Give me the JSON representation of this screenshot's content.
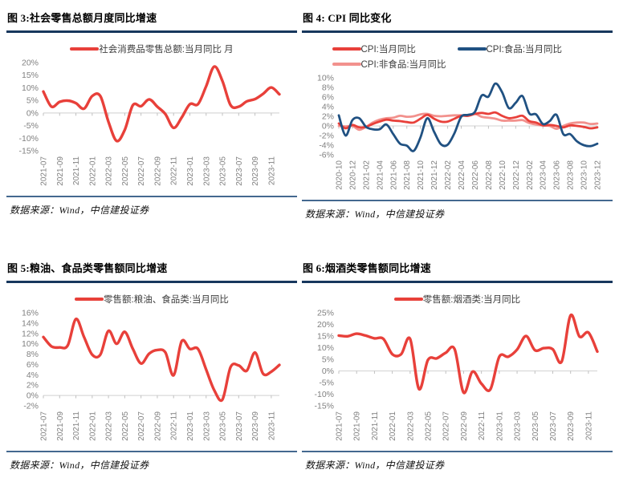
{
  "colors": {
    "red": "#E8403A",
    "navy": "#205182",
    "pink": "#F2918D",
    "title_underline": "#17375D",
    "footer_separator": "#44688F",
    "zero_baseline": "#D9D9D9",
    "axis_tick": "#C0C0C0",
    "tick_text": "#808080",
    "legend_text": "#3F3F3F"
  },
  "panels": [
    {
      "title": "图 3:社会零售总额月度同比增速",
      "source": "数据来源：Wind，中信建投证券"
    },
    {
      "title": "图 4: CPI 同比变化",
      "source": "数据来源：Wind，中信建投证券"
    },
    {
      "title": "图 5:粮油、食品类零售额同比增速",
      "source": "数据来源：Wind，中信建投证券"
    },
    {
      "title": "图 6:烟酒类零售额同比增速",
      "source": "数据来源：Wind，中信建投证券"
    }
  ],
  "chart_data": [
    {
      "type": "line",
      "title": "图 3:社会零售总额月度同比增速",
      "x_start": "2021-07",
      "x_end": "2023-12",
      "n_points": 30,
      "xtick_every": 2,
      "xtick_labels": [
        "2021-07",
        "2021-09",
        "2021-11",
        "2022-01",
        "2022-03",
        "2022-05",
        "2022-07",
        "2022-09",
        "2022-11",
        "2023-01",
        "2023-03",
        "2023-05",
        "2023-07",
        "2023-09",
        "2023-11"
      ],
      "ylim": [
        -15,
        20
      ],
      "yticks": [
        20,
        15,
        10,
        5,
        0,
        -5,
        -10,
        -15
      ],
      "ytick_suffix": "%",
      "grid": "zero-baseline-only",
      "legend_position": "top",
      "stroke_width": 3.4,
      "series": [
        {
          "name": "社会消费品零售总额:当月同比 月",
          "color": "#E8403A",
          "values": [
            8.5,
            2.5,
            4.4,
            4.9,
            3.9,
            1.7,
            6.7,
            6.7,
            -3.5,
            -11.1,
            -6.7,
            3.1,
            2.7,
            5.4,
            2.5,
            -0.5,
            -5.9,
            -1.8,
            3.5,
            3.5,
            10.6,
            18.4,
            12.7,
            3.1,
            2.5,
            4.6,
            5.5,
            7.6,
            10.1,
            7.4
          ]
        }
      ]
    },
    {
      "type": "line",
      "title": "图 4: CPI 同比变化",
      "x_start": "2020-10",
      "x_end": "2023-12",
      "n_points": 39,
      "xtick_every": 2,
      "xtick_labels": [
        "2020-10",
        "2020-12",
        "2021-02",
        "2021-04",
        "2021-06",
        "2021-08",
        "2021-10",
        "2021-12",
        "2022-02",
        "2022-04",
        "2022-06",
        "2022-08",
        "2022-10",
        "2022-12",
        "2023-02",
        "2023-04",
        "2023-06",
        "2023-08",
        "2023-10",
        "2023-12"
      ],
      "ylim": [
        -6,
        10
      ],
      "yticks": [
        10,
        8,
        6,
        4,
        2,
        0,
        -2,
        -4,
        -6
      ],
      "ytick_suffix": "%",
      "grid": "zero-baseline-only",
      "legend_position": "top",
      "stroke_width": 2.8,
      "draw_order": [
        2,
        0,
        1
      ],
      "series": [
        {
          "name": "CPI:当月同比",
          "color": "#E8403A",
          "values": [
            0.5,
            -0.5,
            0.2,
            -0.3,
            -0.2,
            0.4,
            0.9,
            1.3,
            1.1,
            1.0,
            0.8,
            0.7,
            1.5,
            2.3,
            1.5,
            0.9,
            0.9,
            1.5,
            2.1,
            2.1,
            2.5,
            2.7,
            2.5,
            2.8,
            2.1,
            1.6,
            1.8,
            2.1,
            1.0,
            0.7,
            0.1,
            0.2,
            0.0,
            -0.3,
            0.1,
            0.0,
            -0.2,
            -0.5,
            -0.3
          ]
        },
        {
          "name": "CPI:食品:当月同比",
          "color": "#205182",
          "values": [
            2.2,
            -2.0,
            1.2,
            1.6,
            -0.2,
            -0.7,
            -0.7,
            0.3,
            -1.7,
            -3.7,
            -4.1,
            -5.2,
            -2.4,
            1.6,
            -1.2,
            -3.8,
            -3.9,
            -1.5,
            1.9,
            2.3,
            2.9,
            6.3,
            6.1,
            8.8,
            7.0,
            3.7,
            4.8,
            6.2,
            2.6,
            2.4,
            0.4,
            1.0,
            2.3,
            -1.7,
            -1.7,
            -3.2,
            -4.0,
            -4.2,
            -3.7
          ]
        },
        {
          "name": "CPI:非食品:当月同比",
          "color": "#F2918D",
          "values": [
            0.0,
            -0.1,
            0.0,
            -0.8,
            -0.2,
            0.7,
            1.3,
            1.6,
            1.7,
            2.1,
            1.9,
            2.0,
            2.4,
            2.5,
            2.1,
            2.0,
            2.1,
            2.2,
            2.2,
            2.1,
            2.5,
            1.9,
            1.7,
            1.5,
            1.1,
            1.1,
            1.1,
            1.2,
            0.6,
            0.3,
            0.1,
            0.0,
            -0.6,
            0.0,
            0.5,
            0.7,
            0.7,
            0.4,
            0.5
          ]
        }
      ]
    },
    {
      "type": "line",
      "title": "图 5:粮油、食品类零售额同比增速",
      "x_start": "2021-07",
      "x_end": "2023-12",
      "n_points": 30,
      "xtick_every": 2,
      "xtick_labels": [
        "2021-07",
        "2021-09",
        "2021-11",
        "2022-01",
        "2022-03",
        "2022-05",
        "2022-07",
        "2022-09",
        "2022-11",
        "2023-01",
        "2023-03",
        "2023-05",
        "2023-07",
        "2023-09",
        "2023-11"
      ],
      "ylim": [
        -2,
        16
      ],
      "yticks": [
        16,
        14,
        12,
        10,
        8,
        6,
        4,
        2,
        0,
        -2
      ],
      "ytick_suffix": "%",
      "grid": "zero-baseline-only",
      "legend_position": "top",
      "stroke_width": 3.4,
      "series": [
        {
          "name": "零售额:粮油、食品类:当月同比",
          "color": "#E8403A",
          "values": [
            11.3,
            9.5,
            9.3,
            9.7,
            14.8,
            11.3,
            7.9,
            7.9,
            12.5,
            10.0,
            12.3,
            9.0,
            6.2,
            8.1,
            8.8,
            8.3,
            3.9,
            10.5,
            9.0,
            9.0,
            5.0,
            1.0,
            -0.8,
            5.5,
            5.8,
            4.8,
            8.3,
            4.2,
            4.6,
            5.9
          ]
        }
      ]
    },
    {
      "type": "line",
      "title": "图 6:烟酒类零售额同比增速",
      "x_start": "2021-07",
      "x_end": "2023-12",
      "n_points": 30,
      "xtick_every": 2,
      "xtick_labels": [
        "2021-07",
        "2021-09",
        "2021-11",
        "2022-01",
        "2022-03",
        "2022-05",
        "2022-07",
        "2022-09",
        "2022-11",
        "2023-01",
        "2023-03",
        "2023-05",
        "2023-07",
        "2023-09",
        "2023-11"
      ],
      "ylim": [
        -15,
        25
      ],
      "yticks": [
        25,
        20,
        15,
        10,
        5,
        0,
        -5,
        -10,
        -15
      ],
      "ytick_suffix": "%",
      "grid": "zero-baseline-only",
      "legend_position": "top",
      "stroke_width": 3.4,
      "series": [
        {
          "name": "零售额:烟酒类:当月同比",
          "color": "#E8403A",
          "values": [
            15.2,
            14.9,
            16.0,
            15.2,
            14.0,
            13.8,
            7.2,
            7.2,
            13.8,
            -7.8,
            4.7,
            5.4,
            7.8,
            9.3,
            -9.3,
            -0.3,
            -5.5,
            -7.9,
            6.1,
            6.1,
            9.2,
            15.0,
            8.9,
            9.8,
            9.3,
            4.0,
            23.9,
            14.8,
            16.5,
            8.3
          ]
        }
      ]
    }
  ]
}
